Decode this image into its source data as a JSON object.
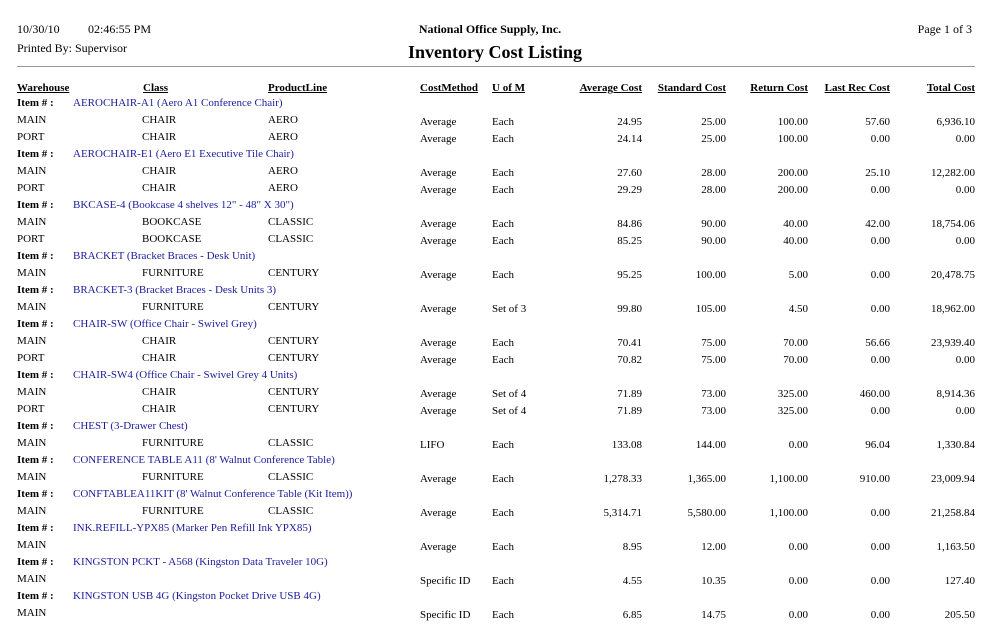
{
  "header": {
    "date": "10/30/10",
    "time": "02:46:55 PM",
    "company": "National Office Supply, Inc.",
    "page": "Page 1 of 3",
    "printed_by": "Printed By: Supervisor",
    "title": "Inventory Cost Listing"
  },
  "columns": [
    "Warehouse",
    "Class",
    "ProductLine",
    "CostMethod",
    "U of M",
    "Average Cost",
    "Standard Cost",
    "Return Cost",
    "Last Rec Cost",
    "Total Cost"
  ],
  "item_label": "Item # :",
  "groups": [
    {
      "item": "AEROCHAIR-A1 (Aero A1 Conference Chair)",
      "rows": [
        [
          "MAIN",
          "CHAIR",
          "AERO",
          "Average",
          "Each",
          "24.95",
          "25.00",
          "100.00",
          "57.60",
          "6,936.10"
        ],
        [
          "PORT",
          "CHAIR",
          "AERO",
          "Average",
          "Each",
          "24.14",
          "25.00",
          "100.00",
          "0.00",
          "0.00"
        ]
      ]
    },
    {
      "item": "AEROCHAIR-E1 (Aero E1 Executive Tile Chair)",
      "rows": [
        [
          "MAIN",
          "CHAIR",
          "AERO",
          "Average",
          "Each",
          "27.60",
          "28.00",
          "200.00",
          "25.10",
          "12,282.00"
        ],
        [
          "PORT",
          "CHAIR",
          "AERO",
          "Average",
          "Each",
          "29.29",
          "28.00",
          "200.00",
          "0.00",
          "0.00"
        ]
      ]
    },
    {
      "item": "BKCASE-4 (Bookcase 4 shelves 12\" - 48\" X 30\")",
      "rows": [
        [
          "MAIN",
          "BOOKCASE",
          "CLASSIC",
          "Average",
          "Each",
          "84.86",
          "90.00",
          "40.00",
          "42.00",
          "18,754.06"
        ],
        [
          "PORT",
          "BOOKCASE",
          "CLASSIC",
          "Average",
          "Each",
          "85.25",
          "90.00",
          "40.00",
          "0.00",
          "0.00"
        ]
      ]
    },
    {
      "item": "BRACKET (Bracket Braces - Desk Unit)",
      "rows": [
        [
          "MAIN",
          "FURNITURE",
          "CENTURY",
          "Average",
          "Each",
          "95.25",
          "100.00",
          "5.00",
          "0.00",
          "20,478.75"
        ]
      ]
    },
    {
      "item": "BRACKET-3 (Bracket Braces - Desk Units 3)",
      "rows": [
        [
          "MAIN",
          "FURNITURE",
          "CENTURY",
          "Average",
          "Set of 3",
          "99.80",
          "105.00",
          "4.50",
          "0.00",
          "18,962.00"
        ]
      ]
    },
    {
      "item": "CHAIR-SW (Office Chair - Swivel Grey)",
      "rows": [
        [
          "MAIN",
          "CHAIR",
          "CENTURY",
          "Average",
          "Each",
          "70.41",
          "75.00",
          "70.00",
          "56.66",
          "23,939.40"
        ],
        [
          "PORT",
          "CHAIR",
          "CENTURY",
          "Average",
          "Each",
          "70.82",
          "75.00",
          "70.00",
          "0.00",
          "0.00"
        ]
      ]
    },
    {
      "item": "CHAIR-SW4 (Office Chair - Swivel Grey 4 Units)",
      "rows": [
        [
          "MAIN",
          "CHAIR",
          "CENTURY",
          "Average",
          "Set of 4",
          "71.89",
          "73.00",
          "325.00",
          "460.00",
          "8,914.36"
        ],
        [
          "PORT",
          "CHAIR",
          "CENTURY",
          "Average",
          "Set of 4",
          "71.89",
          "73.00",
          "325.00",
          "0.00",
          "0.00"
        ]
      ]
    },
    {
      "item": "CHEST (3-Drawer Chest)",
      "rows": [
        [
          "MAIN",
          "FURNITURE",
          "CLASSIC",
          "LIFO",
          "Each",
          "133.08",
          "144.00",
          "0.00",
          "96.04",
          "1,330.84"
        ]
      ]
    },
    {
      "item": "CONFERENCE TABLE A11 (8' Walnut Conference Table)",
      "rows": [
        [
          "MAIN",
          "FURNITURE",
          "CLASSIC",
          "Average",
          "Each",
          "1,278.33",
          "1,365.00",
          "1,100.00",
          "910.00",
          "23,009.94"
        ]
      ]
    },
    {
      "item": "CONFTABLEA11KIT (8' Walnut Conference Table (Kit Item))",
      "rows": [
        [
          "MAIN",
          "FURNITURE",
          "CLASSIC",
          "Average",
          "Each",
          "5,314.71",
          "5,580.00",
          "1,100.00",
          "0.00",
          "21,258.84"
        ]
      ]
    },
    {
      "item": "INK.REFILL-YPX85 (Marker Pen Refill Ink YPX85)",
      "rows": [
        [
          "MAIN",
          null,
          null,
          "Average",
          "Each",
          "8.95",
          "12.00",
          "0.00",
          "0.00",
          "1,163.50"
        ]
      ]
    },
    {
      "item": "KINGSTON PCKT - A568 (Kingston Data Traveler 10G)",
      "rows": [
        [
          "MAIN",
          null,
          null,
          "Specific ID",
          "Each",
          "4.55",
          "10.35",
          "0.00",
          "0.00",
          "127.40"
        ]
      ]
    },
    {
      "item": "KINGSTON USB 4G (Kingston Pocket Drive USB 4G)",
      "rows": [
        [
          "MAIN",
          null,
          null,
          "Specific ID",
          "Each",
          "6.85",
          "14.75",
          "0.00",
          "0.00",
          "205.50"
        ]
      ]
    }
  ]
}
